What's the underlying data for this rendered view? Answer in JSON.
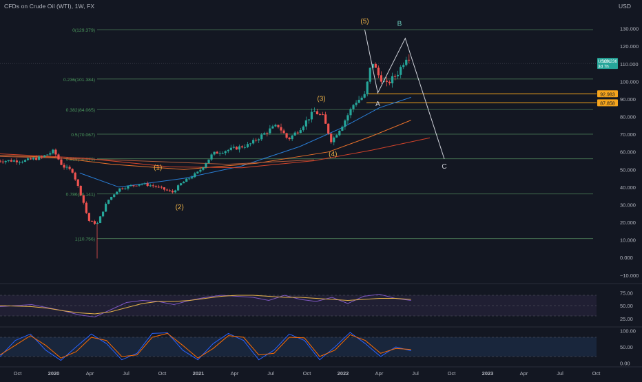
{
  "header": {
    "title": "CFDs on Crude Oil (WTI), 1W, FX",
    "currency": "USD"
  },
  "colors": {
    "background": "#131722",
    "grid": "#1e222d",
    "axis_text": "#b2b5be",
    "candle_up": "#26a69a",
    "candle_down": "#ef5350",
    "fib_line": "#4a7a56",
    "fib_text": "#4c9a5e",
    "wave_label": "#f0b447",
    "abc_label": "#d1d4dc",
    "b_label": "#6fd0c0",
    "projection_line": "#d1d4dc",
    "ema_blue": "#2a7fd8",
    "ma_orange": "#e8702a",
    "ma_red": "#d3432a",
    "ma_brown": "#b25a3a",
    "level_orange": "#f6a51d",
    "price_badge": "#26a69a",
    "rsi_line": "#7e57c2",
    "rsi_ma": "#e6b34a",
    "rsi_bg": "#2a2440",
    "stoch_k": "#2962ff",
    "stoch_d": "#ff6d00",
    "stoch_bg": "#1c2a44"
  },
  "chart_data": {
    "type": "line",
    "title": "CFDs on Crude Oil (WTI), 1W, FX",
    "x_labels": [
      "Oct",
      "2020",
      "Apr",
      "Jul",
      "Oct",
      "2021",
      "Apr",
      "Jul",
      "Oct",
      "2022",
      "Apr",
      "Jul",
      "Oct",
      "2023",
      "Apr",
      "Jul",
      "Oct"
    ],
    "price_axis": {
      "unit": "USD",
      "ylim": [
        -14,
        140
      ],
      "ticks": [
        "130.000",
        "120.000",
        "110.000",
        "100.000",
        "90.000",
        "80.000",
        "70.000",
        "60.000",
        "50.000",
        "40.000",
        "30.000",
        "20.000",
        "10.000",
        "0.000",
        "−10.000"
      ]
    },
    "close_series_anchors": [
      {
        "x": 2019.8,
        "y": 55.0
      },
      {
        "x": 2019.92,
        "y": 57.0
      },
      {
        "x": 2020.0,
        "y": 60.5
      },
      {
        "x": 2020.06,
        "y": 52.0
      },
      {
        "x": 2020.13,
        "y": 49.0
      },
      {
        "x": 2020.2,
        "y": 33.0
      },
      {
        "x": 2020.24,
        "y": 21.0
      },
      {
        "x": 2020.3,
        "y": 19.0
      },
      {
        "x": 2020.37,
        "y": 32.0
      },
      {
        "x": 2020.45,
        "y": 39.0
      },
      {
        "x": 2020.6,
        "y": 42.0
      },
      {
        "x": 2020.7,
        "y": 40.5
      },
      {
        "x": 2020.82,
        "y": 37.0
      },
      {
        "x": 2020.88,
        "y": 42.0
      },
      {
        "x": 2021.0,
        "y": 48.5
      },
      {
        "x": 2021.1,
        "y": 59.0
      },
      {
        "x": 2021.2,
        "y": 61.0
      },
      {
        "x": 2021.35,
        "y": 64.0
      },
      {
        "x": 2021.5,
        "y": 73.0
      },
      {
        "x": 2021.55,
        "y": 75.0
      },
      {
        "x": 2021.62,
        "y": 67.0
      },
      {
        "x": 2021.7,
        "y": 73.0
      },
      {
        "x": 2021.8,
        "y": 83.0
      },
      {
        "x": 2021.86,
        "y": 80.0
      },
      {
        "x": 2021.92,
        "y": 66.0
      },
      {
        "x": 2022.0,
        "y": 76.0
      },
      {
        "x": 2022.08,
        "y": 88.0
      },
      {
        "x": 2022.15,
        "y": 92.0
      },
      {
        "x": 2022.2,
        "y": 112.0
      },
      {
        "x": 2022.24,
        "y": 104.0
      },
      {
        "x": 2022.3,
        "y": 98.0
      },
      {
        "x": 2022.38,
        "y": 105.0
      },
      {
        "x": 2022.45,
        "y": 116.0
      },
      {
        "x": 2022.47,
        "y": 110.236
      }
    ],
    "fib_levels": [
      {
        "ratio": "0",
        "price": 129.379,
        "label": "0(129.379)"
      },
      {
        "ratio": "0.236",
        "price": 101.384,
        "label": "0.236(101.384)"
      },
      {
        "ratio": "0.382",
        "price": 84.065,
        "label": "0.382(84.065)"
      },
      {
        "ratio": "0.5",
        "price": 70.067,
        "label": "0.5(70.067)"
      },
      {
        "ratio": "0.618",
        "price": 56.079,
        "label": "0.618(56.079)"
      },
      {
        "ratio": "0.786",
        "price": 36.141,
        "label": "0.786(36.141)"
      },
      {
        "ratio": "1",
        "price": 10.756,
        "label": "1(10.756)"
      }
    ],
    "wave_labels": [
      {
        "label": "(1)",
        "x": 2020.72,
        "y": 50.0
      },
      {
        "label": "(2)",
        "x": 2020.87,
        "y": 27.5
      },
      {
        "label": "(3)",
        "x": 2021.85,
        "y": 89.0
      },
      {
        "label": "(4)",
        "x": 2021.93,
        "y": 57.5
      },
      {
        "label": "(5)",
        "x": 2022.15,
        "y": 133.0
      },
      {
        "label": "A",
        "x": 2022.24,
        "y": 86.0
      },
      {
        "label": "B",
        "x": 2022.39,
        "y": 131.5
      },
      {
        "label": "C",
        "x": 2022.7,
        "y": 50.5
      }
    ],
    "abc_path": [
      {
        "x": 2022.15,
        "y": 129.4
      },
      {
        "x": 2022.24,
        "y": 93.5
      },
      {
        "x": 2022.43,
        "y": 124.5
      },
      {
        "x": 2022.7,
        "y": 56.0
      }
    ],
    "moving_averages": [
      {
        "color_key": "ema_blue",
        "points": [
          {
            "x": 2020.18,
            "y": 48.0
          },
          {
            "x": 2020.45,
            "y": 40.0
          },
          {
            "x": 2020.9,
            "y": 45.0
          },
          {
            "x": 2021.3,
            "y": 52.0
          },
          {
            "x": 2021.7,
            "y": 63.0
          },
          {
            "x": 2022.0,
            "y": 74.0
          },
          {
            "x": 2022.25,
            "y": 85.0
          },
          {
            "x": 2022.47,
            "y": 91.0
          }
        ]
      },
      {
        "color_key": "ma_orange",
        "points": [
          {
            "x": 2019.6,
            "y": 58.0
          },
          {
            "x": 2020.0,
            "y": 57.0
          },
          {
            "x": 2020.4,
            "y": 53.0
          },
          {
            "x": 2020.9,
            "y": 50.0
          },
          {
            "x": 2021.4,
            "y": 53.5
          },
          {
            "x": 2021.9,
            "y": 60.0
          },
          {
            "x": 2022.2,
            "y": 69.0
          },
          {
            "x": 2022.47,
            "y": 78.0
          }
        ]
      },
      {
        "color_key": "ma_red",
        "points": [
          {
            "x": 2019.6,
            "y": 59.0
          },
          {
            "x": 2020.2,
            "y": 56.5
          },
          {
            "x": 2020.8,
            "y": 51.5
          },
          {
            "x": 2021.3,
            "y": 51.0
          },
          {
            "x": 2021.8,
            "y": 55.0
          },
          {
            "x": 2022.2,
            "y": 61.0
          },
          {
            "x": 2022.6,
            "y": 68.0
          }
        ]
      },
      {
        "color_key": "ma_brown",
        "points": [
          {
            "x": 2019.6,
            "y": 57.5
          },
          {
            "x": 2020.4,
            "y": 55.5
          },
          {
            "x": 2021.2,
            "y": 53.0
          },
          {
            "x": 2021.8,
            "y": 55.5
          }
        ]
      }
    ],
    "horizontal_levels": [
      {
        "price": 92.983,
        "label": "92.983",
        "color_key": "level_orange"
      },
      {
        "price": 87.858,
        "label": "87.858",
        "color_key": "level_orange"
      }
    ],
    "last_price": {
      "symbol": "USOIL",
      "value": "110.236",
      "countdown": "3d 7h"
    },
    "rsi": {
      "ticks": [
        "75.00",
        "50.00",
        "25.00"
      ],
      "ylim": [
        10,
        90
      ],
      "values": [
        48,
        50,
        52,
        46,
        40,
        32,
        28,
        42,
        56,
        60,
        58,
        52,
        60,
        66,
        70,
        68,
        66,
        60,
        70,
        62,
        58,
        66,
        54,
        68,
        72,
        64,
        60
      ],
      "ma": [
        50,
        49,
        48,
        45,
        40,
        36,
        34,
        38,
        46,
        54,
        58,
        58,
        60,
        64,
        68,
        70,
        70,
        68,
        66,
        66,
        64,
        62,
        60,
        62,
        64,
        64,
        62
      ]
    },
    "stochastic": {
      "ticks": [
        "100.00",
        "50.00",
        "0.00"
      ],
      "ylim": [
        -10,
        110
      ],
      "k": [
        20,
        70,
        90,
        40,
        8,
        50,
        90,
        60,
        10,
        30,
        92,
        94,
        40,
        10,
        60,
        92,
        70,
        10,
        40,
        90,
        70,
        10,
        50,
        95,
        60,
        20,
        50,
        38
      ],
      "d": [
        25,
        55,
        85,
        55,
        15,
        35,
        80,
        70,
        20,
        25,
        80,
        92,
        55,
        15,
        45,
        85,
        80,
        25,
        30,
        80,
        78,
        20,
        40,
        88,
        70,
        30,
        45,
        42
      ]
    }
  }
}
